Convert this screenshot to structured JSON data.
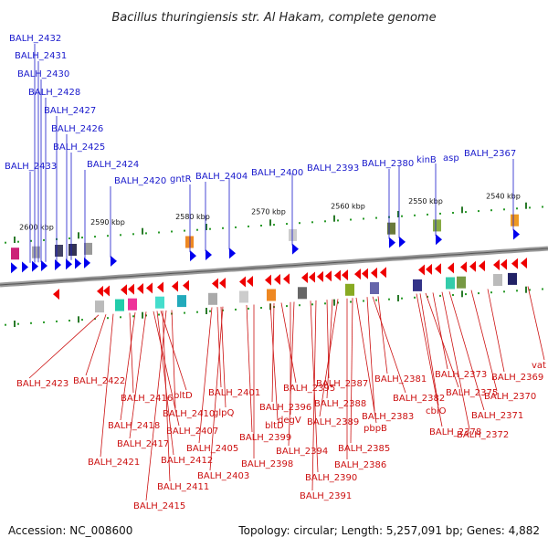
{
  "title": "Bacillus thuringiensis str. Al Hakam, complete genome",
  "accession_text": "Accession: NC_008600",
  "topology_text": "Topology: circular; Length: 5,257,091 bp; Genes: 4,882",
  "colors": {
    "forward_label": "#1a1acc",
    "reverse_label": "#cc1111",
    "forward_arrow": "#0000ee",
    "reverse_arrow": "#ee0000",
    "backbone": "#888888",
    "tick": "#2a9a2a"
  },
  "kbp_ticks": [
    "2600 kbp",
    "2590 kbp",
    "2580 kbp",
    "2570 kbp",
    "2560 kbp",
    "2550 kbp",
    "2540 kbp"
  ],
  "top_labels": [
    "BALH_2432",
    "BALH_2431",
    "BALH_2430",
    "BALH_2428",
    "BALH_2427",
    "BALH_2426",
    "BALH_2425",
    "BALH_2433",
    "BALH_2424",
    "BALH_2420",
    "gntR",
    "BALH_2404",
    "BALH_2400",
    "BALH_2393",
    "BALH_2380",
    "kinB",
    "asp",
    "BALH_2367"
  ],
  "bottom_labels": [
    "BALH_2423",
    "BALH_2422",
    "BALH_2416",
    "bltD",
    "BALH_2410",
    "BALH_2418",
    "BALH_2407",
    "BALH_2417",
    "BALH_2412",
    "BALH_2421",
    "BALH_2411",
    "BALH_2415",
    "BALH_2401",
    "glpQ",
    "BALH_2405",
    "BALH_2403",
    "BALH_2399",
    "BALH_2398",
    "bltD",
    "BALH_2396",
    "BALH_2395",
    "degV",
    "BALH_2394",
    "BALH_2390",
    "BALH_2391",
    "BALH_2387",
    "BALH_2388",
    "BALH_2389",
    "BALH_2386",
    "BALH_2385",
    "pbpB",
    "BALH_2383",
    "BALH_2382",
    "BALH_2381",
    "cbiO",
    "BALH_2378",
    "BALH_2375",
    "BALH_2373",
    "BALH_2372",
    "BALH_2371",
    "BALH_2370",
    "BALH_2369",
    "vat"
  ]
}
